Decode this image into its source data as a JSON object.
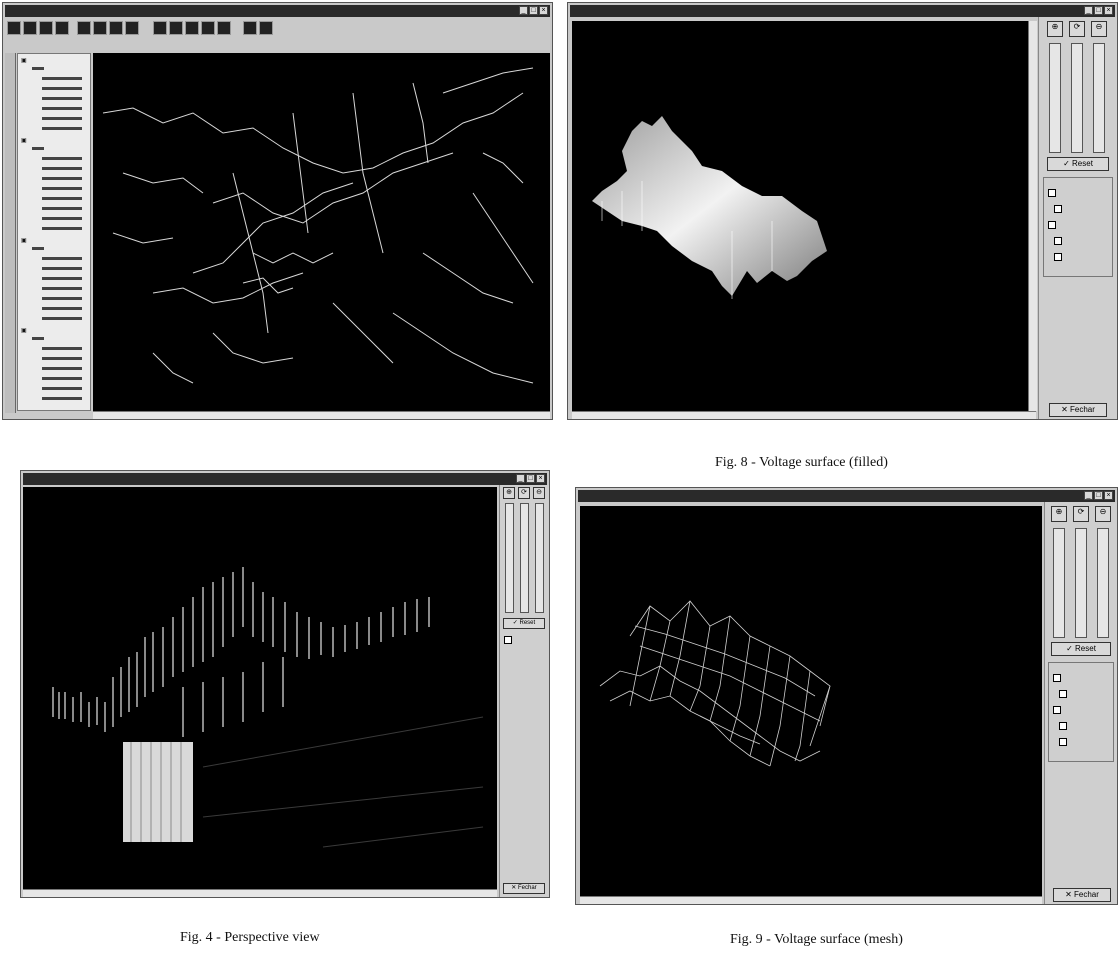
{
  "captions": {
    "fig8": "Fig. 8 - Voltage surface (filled)",
    "fig4": "Fig. 4 - Perspective view",
    "fig9": "Fig. 9 - Voltage surface (mesh)"
  },
  "buttons": {
    "fechar": "Fechar",
    "reset": "Reset"
  },
  "colors": {
    "canvas": "#000000",
    "panel": "#cfcfcf",
    "surface": "#e8e8e8",
    "mesh": "#d0d0d0"
  },
  "icons": [
    "zoom-in-icon",
    "zoom-out-icon",
    "rotate-icon",
    "close-icon",
    "minimize-icon",
    "maximize-icon",
    "check-icon",
    "x-icon"
  ]
}
